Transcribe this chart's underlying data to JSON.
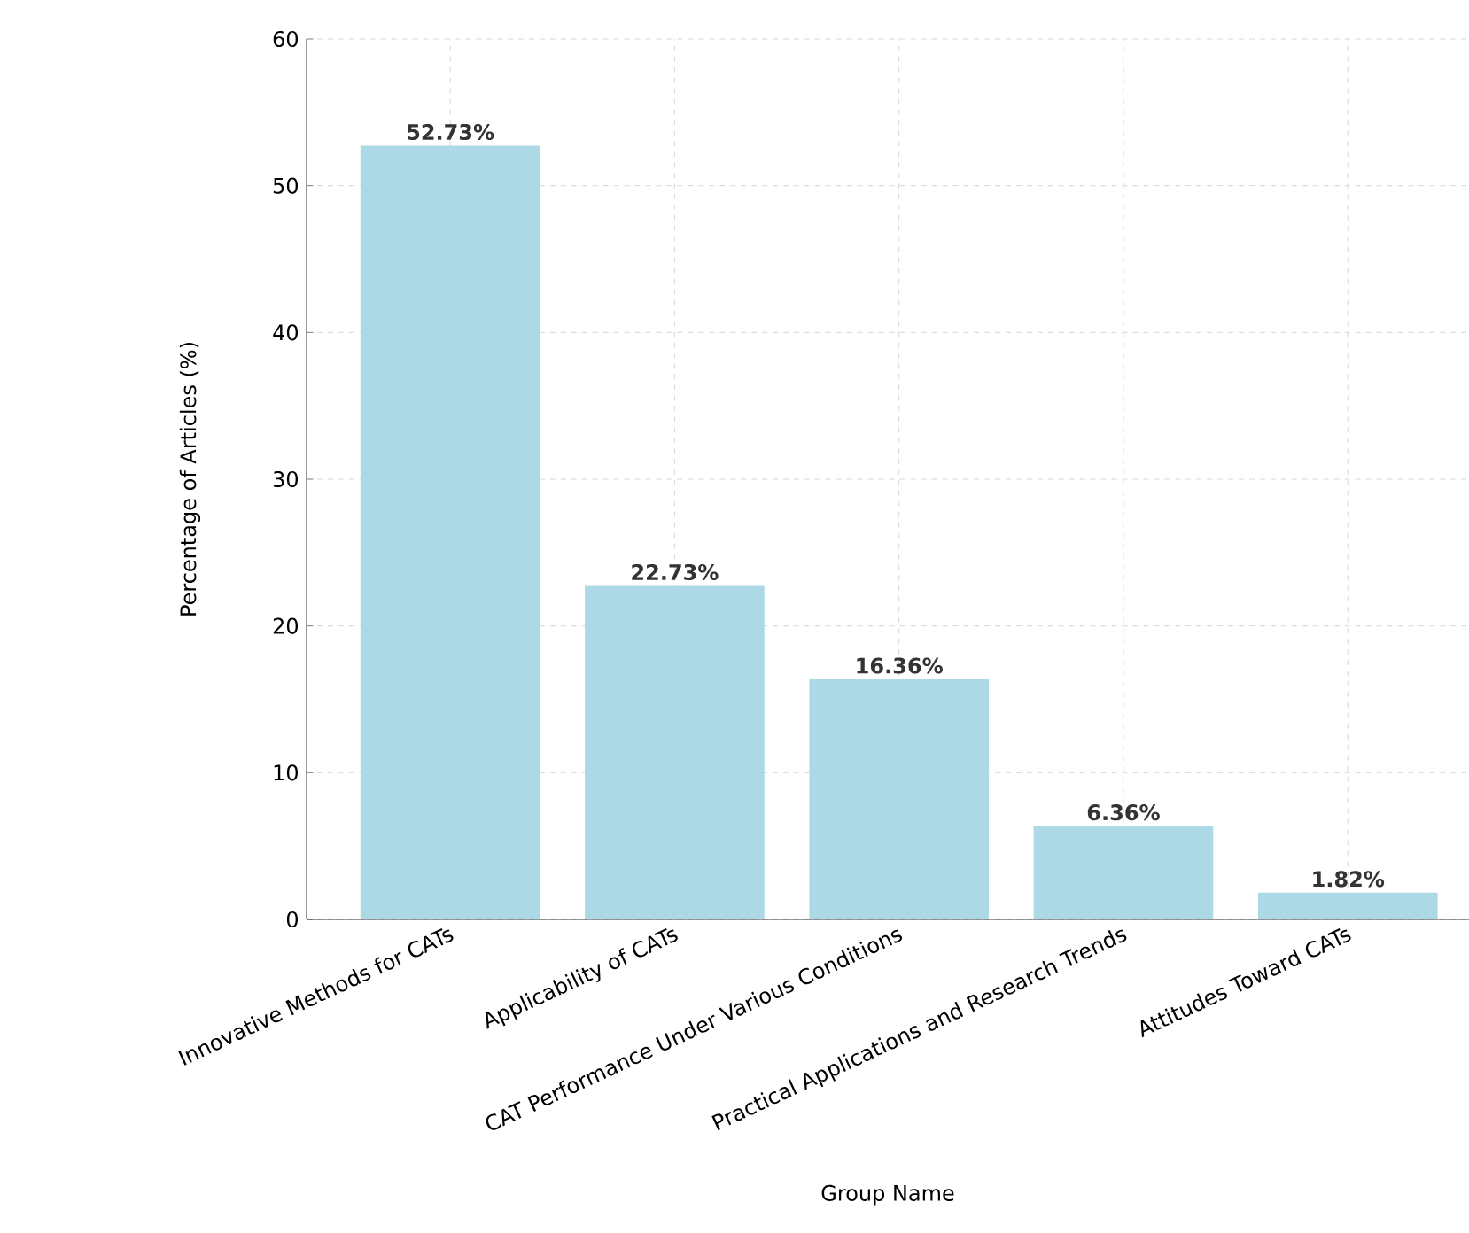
{
  "chart_data": {
    "type": "bar",
    "xlabel": "Group Name",
    "ylabel": "Percentage of Articles (%)",
    "categories": [
      "Innovative Methods for CATs",
      "Applicability of CATs",
      "CAT Performance Under Various Conditions",
      "Practical Applications and Research Trends",
      "Attitudes Toward CATs"
    ],
    "values": [
      52.73,
      22.73,
      16.36,
      6.36,
      1.82
    ],
    "value_labels": [
      "52.73%",
      "22.73%",
      "16.36%",
      "6.36%",
      "1.82%"
    ],
    "color": "#add8e6",
    "ylim": [
      0,
      60
    ],
    "yticks": [
      0,
      10,
      20,
      30,
      40,
      50,
      60
    ],
    "grid": true
  }
}
